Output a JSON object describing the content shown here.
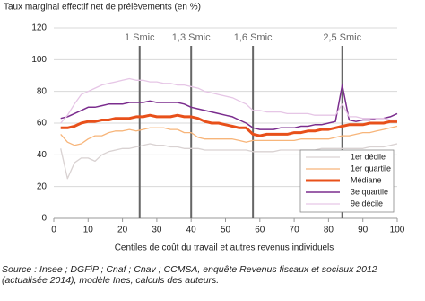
{
  "chart_data": {
    "type": "line",
    "y_axis_title": "Taux marginal effectif net de prélèvements (en %)",
    "x_axis_title": "Centiles de coût du travail et autres revenus individuels",
    "source": "Source : Insee ; DGFiP ; Cnaf ; Cnav ; CCMSA, enquête Revenus fiscaux et sociaux 2012 (actualisée 2014), modèle Ines, calculs des auteurs.",
    "x": [
      2,
      4,
      6,
      8,
      10,
      12,
      14,
      16,
      18,
      20,
      22,
      24,
      26,
      28,
      30,
      32,
      34,
      36,
      38,
      40,
      42,
      44,
      46,
      48,
      50,
      52,
      54,
      56,
      58,
      60,
      62,
      64,
      66,
      68,
      70,
      72,
      74,
      76,
      78,
      80,
      82,
      84,
      86,
      88,
      90,
      92,
      94,
      96,
      98,
      100
    ],
    "series": [
      {
        "name": "1er décile",
        "color": "#d9d2d2",
        "width": 1.3,
        "values": [
          44,
          25,
          35,
          38,
          38,
          36,
          40,
          42,
          43,
          44,
          44,
          45,
          46,
          47,
          46,
          46,
          45,
          45,
          44,
          44,
          44,
          43,
          43,
          43,
          43,
          43,
          43,
          43,
          42,
          42,
          42,
          42,
          43,
          43,
          43,
          43,
          43,
          43,
          44,
          44,
          44,
          44,
          44,
          44,
          44,
          45,
          45,
          45,
          46,
          47
        ]
      },
      {
        "name": "1er quartile",
        "color": "#f7b57a",
        "width": 1.3,
        "values": [
          53,
          48,
          46,
          47,
          50,
          52,
          52,
          54,
          55,
          55,
          56,
          55,
          56,
          57,
          57,
          57,
          56,
          56,
          54,
          54,
          51,
          50,
          50,
          50,
          50,
          50,
          49,
          48,
          49,
          49,
          49,
          49,
          49,
          49,
          49,
          50,
          50,
          50,
          50,
          50,
          51,
          52,
          52,
          53,
          54,
          54,
          55,
          56,
          57,
          58
        ]
      },
      {
        "name": "Médiane",
        "color": "#e8501a",
        "width": 3,
        "values": [
          57,
          57,
          58,
          60,
          61,
          61,
          62,
          62,
          63,
          63,
          63,
          64,
          64,
          65,
          64,
          64,
          64,
          65,
          64,
          64,
          63,
          61,
          60,
          60,
          59,
          58,
          57,
          57,
          53,
          52,
          53,
          53,
          53,
          53,
          54,
          54,
          55,
          55,
          56,
          56,
          57,
          58,
          59,
          59,
          59,
          60,
          60,
          60,
          61,
          61
        ]
      },
      {
        "name": "3e quartile",
        "color": "#7b2d8e",
        "width": 1.5,
        "values": [
          63,
          64,
          66,
          68,
          70,
          70,
          71,
          72,
          72,
          72,
          73,
          73,
          73,
          74,
          73,
          73,
          73,
          73,
          72,
          70,
          69,
          68,
          67,
          66,
          65,
          64,
          62,
          60,
          57,
          56,
          56,
          56,
          57,
          57,
          57,
          58,
          58,
          59,
          59,
          60,
          61,
          84,
          62,
          61,
          62,
          62,
          63,
          63,
          64,
          66
        ]
      },
      {
        "name": "9e décile",
        "color": "#e6c6e6",
        "width": 1.3,
        "values": [
          60,
          65,
          72,
          78,
          80,
          82,
          84,
          85,
          86,
          87,
          88,
          87,
          87,
          86,
          86,
          85,
          85,
          84,
          84,
          83,
          82,
          80,
          79,
          78,
          77,
          76,
          74,
          72,
          68,
          68,
          67,
          67,
          67,
          66,
          66,
          66,
          66,
          65,
          65,
          65,
          65,
          72,
          64,
          64,
          63,
          63,
          63,
          63,
          62,
          62
        ]
      }
    ],
    "annotations": [
      {
        "x": 25,
        "label": "1 Smic"
      },
      {
        "x": 40,
        "label": "1,3 Smic"
      },
      {
        "x": 58,
        "label": "1,6 Smic"
      },
      {
        "x": 84,
        "label": "2,5 Smic"
      }
    ],
    "annotation_color": "#666666",
    "xlim": [
      0,
      100
    ],
    "xticks": [
      0,
      10,
      20,
      30,
      40,
      50,
      60,
      70,
      80,
      90,
      100
    ],
    "ylim": [
      0,
      120
    ],
    "yticks": [
      0,
      20,
      40,
      60,
      80,
      100,
      120
    ],
    "grid": true,
    "legend": "lower right"
  }
}
